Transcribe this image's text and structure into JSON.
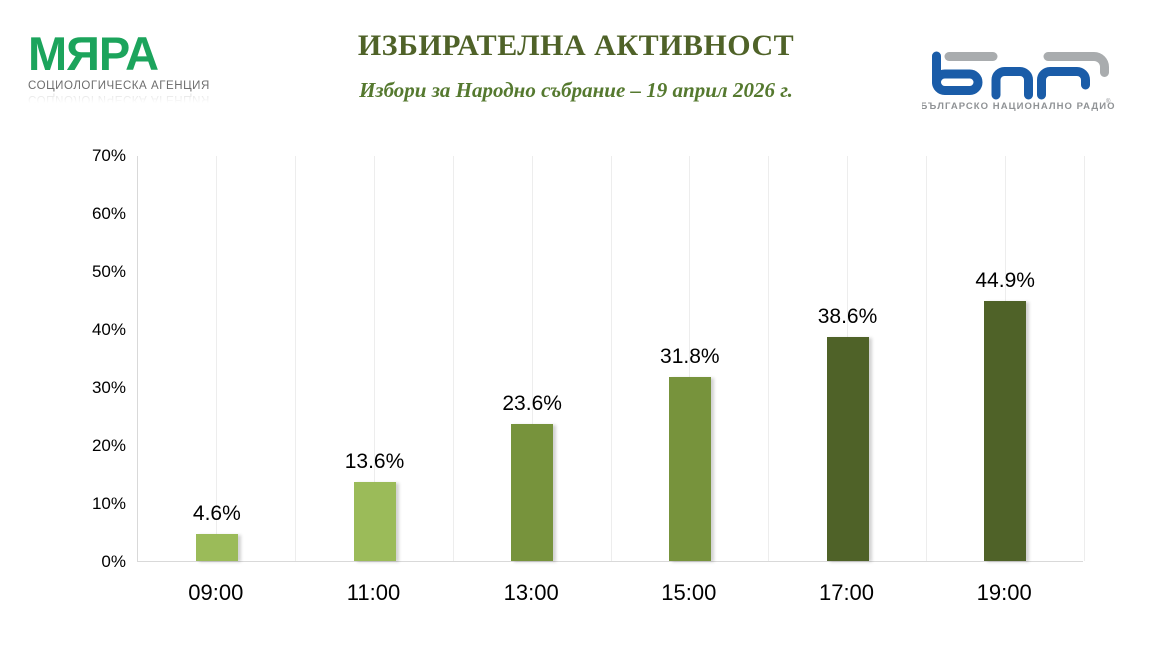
{
  "header": {
    "myara": {
      "name": "МЯРА",
      "subtitle": "СОЦИОЛОГИЧЕСКА АГЕНЦИЯ",
      "green": "#1ca45c"
    },
    "title": "ИЗБИРАТЕЛНА АКТИВНОСТ",
    "subtitle": "Избори за Народно събрание – 19 април 2026 г.",
    "title_color": "#4f6228",
    "subtitle_color": "#55792f",
    "bnr": {
      "caption": "БЪЛГАРСКО НАЦИОНАЛНО РАДИО",
      "registered": "®",
      "blue": "#1a5ca8",
      "gray": "#a9acae",
      "caption_color": "#8f9295"
    }
  },
  "chart_data": {
    "type": "bar",
    "title": "ИЗБИРАТЕЛНА АКТИВНОСТ",
    "subtitle": "Избори за Народно събрание – 19 април 2026 г.",
    "categories": [
      "09:00",
      "11:00",
      "13:00",
      "15:00",
      "17:00",
      "19:00"
    ],
    "values": [
      4.6,
      13.6,
      23.6,
      31.8,
      38.6,
      44.9
    ],
    "value_labels": [
      "4.6%",
      "13.6%",
      "23.6%",
      "31.8%",
      "38.6%",
      "44.9%"
    ],
    "bar_colors": [
      "#9bbb59",
      "#9bbb59",
      "#77933c",
      "#77933c",
      "#4f6228",
      "#4f6228"
    ],
    "ylim": [
      0,
      70
    ],
    "ytick_labels": [
      "0%",
      "10%",
      "20%",
      "30%",
      "40%",
      "50%",
      "60%",
      "70%"
    ],
    "grid": "vertical-only",
    "legend": "none",
    "xlabel": "",
    "ylabel": ""
  }
}
